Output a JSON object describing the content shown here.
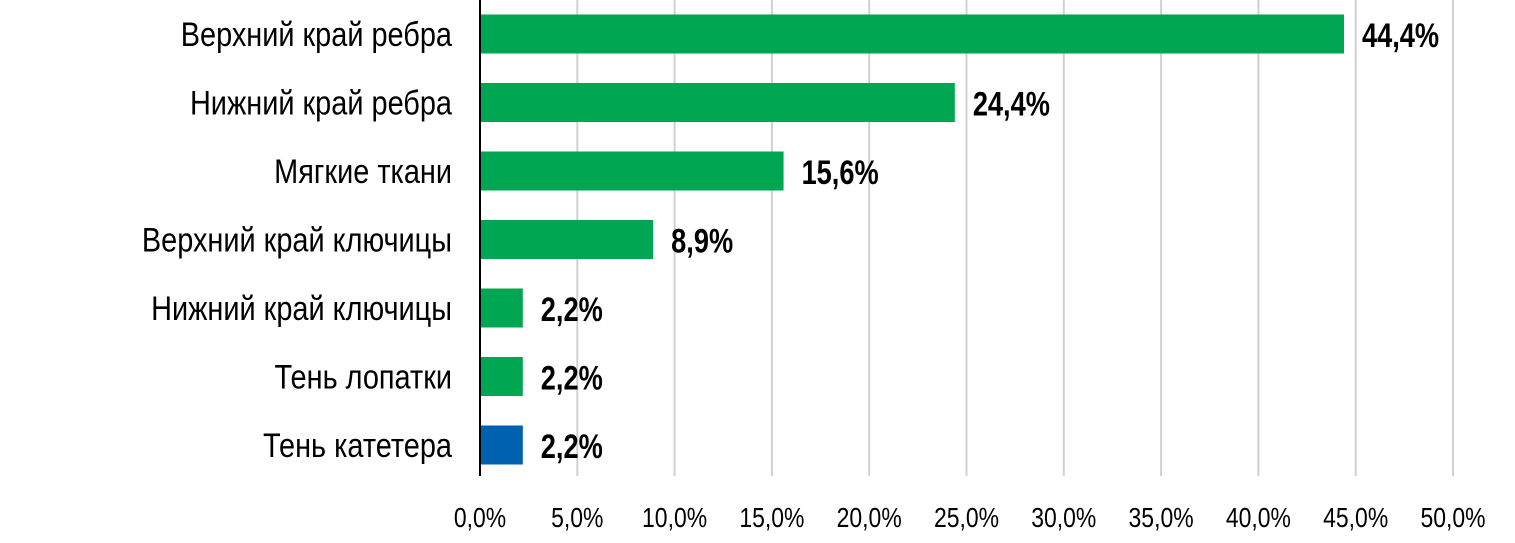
{
  "chart_data": {
    "type": "bar",
    "orientation": "horizontal",
    "categories": [
      "Верхний край ребра",
      "Нижний край ребра",
      "Мягкие ткани",
      "Верхний край ключицы",
      "Нижний край ключицы",
      "Тень лопатки",
      "Тень катетера"
    ],
    "values": [
      44.4,
      24.4,
      15.6,
      8.9,
      2.2,
      2.2,
      2.2
    ],
    "data_labels": [
      "44,4%",
      "24,4%",
      "15,6%",
      "8,9%",
      "2,2%",
      "2,2%",
      "2,2%"
    ],
    "bar_colors": [
      "#00a651",
      "#00a651",
      "#00a651",
      "#00a651",
      "#00a651",
      "#00a651",
      "#0061b0"
    ],
    "xlim": [
      0,
      50
    ],
    "x_ticks": [
      0,
      5,
      10,
      15,
      20,
      25,
      30,
      35,
      40,
      45,
      50
    ],
    "x_tick_labels": [
      "0,0%",
      "5,0%",
      "10,0%",
      "15,0%",
      "20,0%",
      "25,0%",
      "30,0%",
      "35,0%",
      "40,0%",
      "45,0%",
      "50,0%"
    ],
    "grid": "vertical",
    "grid_color": "#d0d0d0",
    "xlabel": "",
    "ylabel": "",
    "title": ""
  }
}
